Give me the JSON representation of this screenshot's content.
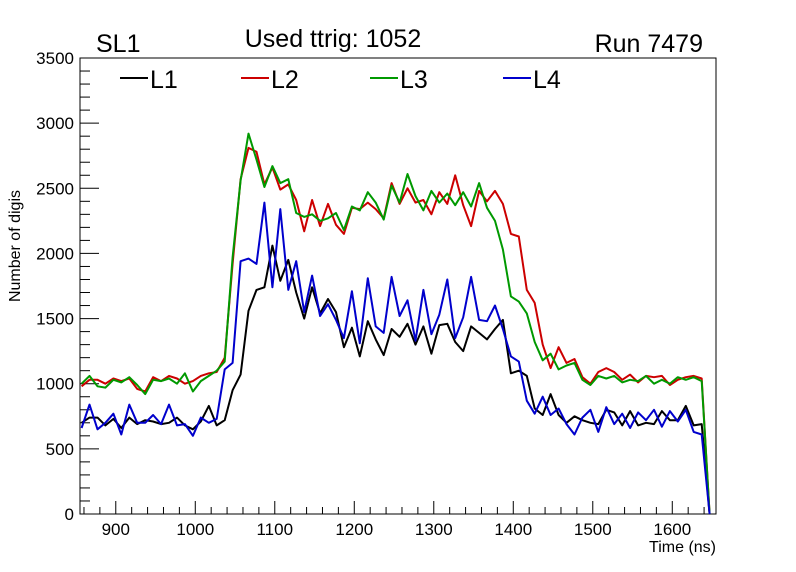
{
  "header": {
    "left": "SL1",
    "center": "Used ttrig: 1052",
    "right": "Run 7479"
  },
  "chart_data": {
    "type": "line",
    "title": "Used ttrig: 1052",
    "xlabel": "Time (ns)",
    "ylabel": "Number of digis",
    "xlim": [
      855,
      1655
    ],
    "ylim": [
      0,
      3500
    ],
    "xticks": [
      900,
      1000,
      1100,
      1200,
      1300,
      1400,
      1500,
      1600
    ],
    "yticks": [
      0,
      500,
      1000,
      1500,
      2000,
      2500,
      3000,
      3500
    ],
    "grid": false,
    "legend_position": "top",
    "x": [
      857,
      867,
      877,
      887,
      897,
      907,
      917,
      927,
      937,
      947,
      957,
      967,
      977,
      987,
      997,
      1007,
      1017,
      1027,
      1037,
      1047,
      1057,
      1067,
      1077,
      1087,
      1097,
      1107,
      1117,
      1127,
      1137,
      1147,
      1157,
      1167,
      1177,
      1187,
      1197,
      1207,
      1217,
      1227,
      1237,
      1247,
      1257,
      1267,
      1277,
      1287,
      1297,
      1307,
      1317,
      1327,
      1337,
      1347,
      1357,
      1367,
      1377,
      1387,
      1397,
      1407,
      1417,
      1427,
      1437,
      1447,
      1457,
      1467,
      1477,
      1487,
      1497,
      1507,
      1517,
      1527,
      1537,
      1547,
      1557,
      1567,
      1577,
      1587,
      1597,
      1607,
      1617,
      1627,
      1637,
      1647
    ],
    "series": [
      {
        "name": "L1",
        "color": "#000000",
        "values": [
          700,
          740,
          740,
          680,
          730,
          660,
          740,
          690,
          720,
          710,
          690,
          700,
          740,
          680,
          650,
          710,
          830,
          680,
          720,
          950,
          1070,
          1560,
          1720,
          1740,
          2060,
          1790,
          1950,
          1700,
          1500,
          1740,
          1540,
          1650,
          1550,
          1280,
          1430,
          1210,
          1480,
          1340,
          1220,
          1420,
          1360,
          1460,
          1300,
          1440,
          1230,
          1450,
          1460,
          1320,
          1250,
          1440,
          1390,
          1340,
          1420,
          1490,
          1080,
          1100,
          1060,
          810,
          760,
          920,
          760,
          700,
          750,
          720,
          700,
          690,
          800,
          780,
          680,
          790,
          680,
          700,
          690,
          790,
          720,
          720,
          830,
          680,
          690,
          0
        ]
      },
      {
        "name": "L2",
        "color": "#cc0000",
        "values": [
          980,
          1030,
          1030,
          1000,
          1040,
          1020,
          1040,
          960,
          940,
          1050,
          1020,
          1060,
          1040,
          1000,
          1020,
          1060,
          1080,
          1090,
          1200,
          1920,
          2570,
          2810,
          2780,
          2530,
          2660,
          2490,
          2530,
          2410,
          2170,
          2410,
          2210,
          2380,
          2220,
          2150,
          2350,
          2340,
          2390,
          2340,
          2270,
          2540,
          2380,
          2500,
          2390,
          2410,
          2300,
          2470,
          2380,
          2600,
          2370,
          2210,
          2480,
          2400,
          2480,
          2380,
          2150,
          2130,
          1720,
          1620,
          1300,
          1120,
          1280,
          1160,
          1190,
          1050,
          1000,
          1090,
          1120,
          1090,
          1030,
          1070,
          1010,
          1060,
          1050,
          1060,
          990,
          1030,
          1050,
          1060,
          1040,
          0
        ]
      },
      {
        "name": "L3",
        "color": "#009900",
        "values": [
          1000,
          1060,
          980,
          970,
          1030,
          1010,
          1050,
          990,
          920,
          1030,
          1020,
          1040,
          1000,
          1080,
          940,
          1020,
          1060,
          1100,
          1170,
          1970,
          2560,
          2920,
          2720,
          2510,
          2670,
          2540,
          2570,
          2310,
          2280,
          2300,
          2250,
          2270,
          2310,
          2180,
          2360,
          2330,
          2470,
          2390,
          2260,
          2520,
          2390,
          2610,
          2440,
          2330,
          2480,
          2390,
          2460,
          2370,
          2470,
          2360,
          2540,
          2350,
          2250,
          2030,
          1670,
          1630,
          1540,
          1320,
          1180,
          1230,
          1110,
          1140,
          1160,
          1030,
          990,
          1060,
          1040,
          1060,
          1010,
          1030,
          1020,
          1060,
          1000,
          1030,
          1000,
          1050,
          1030,
          1050,
          1020,
          0
        ]
      },
      {
        "name": "L4",
        "color": "#0000cc",
        "values": [
          660,
          840,
          650,
          700,
          770,
          610,
          840,
          700,
          700,
          760,
          690,
          840,
          680,
          690,
          600,
          740,
          700,
          730,
          1110,
          1160,
          1940,
          1960,
          1920,
          2390,
          1740,
          2340,
          1720,
          1940,
          1550,
          1830,
          1520,
          1610,
          1490,
          1350,
          1710,
          1310,
          1810,
          1440,
          1390,
          1820,
          1520,
          1640,
          1330,
          1720,
          1380,
          1530,
          1800,
          1350,
          1510,
          1820,
          1490,
          1480,
          1600,
          1420,
          1210,
          1170,
          870,
          770,
          900,
          760,
          810,
          690,
          610,
          740,
          800,
          630,
          820,
          690,
          770,
          660,
          780,
          720,
          800,
          670,
          790,
          710,
          800,
          630,
          610,
          0
        ]
      }
    ]
  }
}
